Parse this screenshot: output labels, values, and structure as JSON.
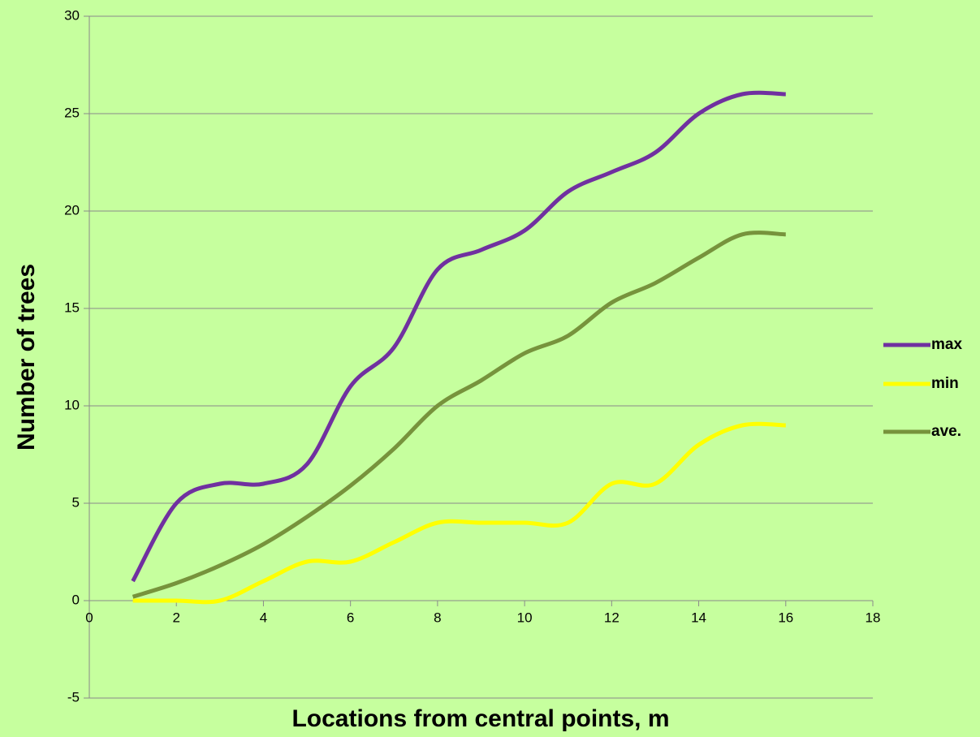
{
  "chart_data": {
    "type": "line",
    "x_label": "Locations from central points, m",
    "y_label": "Number of trees",
    "x": [
      1,
      2,
      3,
      4,
      5,
      6,
      7,
      8,
      9,
      10,
      11,
      12,
      13,
      14,
      15,
      16
    ],
    "series": [
      {
        "name": "max",
        "color": "#7030a0",
        "values": [
          1,
          5,
          6,
          6,
          7,
          11,
          13,
          17,
          18,
          19,
          21,
          22,
          23,
          25,
          26,
          26
        ]
      },
      {
        "name": "min",
        "color": "#ffff00",
        "values": [
          0,
          0,
          0,
          1,
          2,
          2,
          3,
          4,
          4,
          4,
          4,
          6,
          6,
          8,
          9,
          9
        ]
      },
      {
        "name": "ave.",
        "color": "#77933c",
        "values": [
          0.2,
          0.9,
          1.8,
          2.9,
          4.3,
          5.9,
          7.8,
          10,
          11.3,
          12.7,
          13.6,
          15.3,
          16.3,
          17.6,
          18.8,
          18.8
        ]
      }
    ],
    "xlim": [
      0,
      18
    ],
    "xticks": [
      0,
      2,
      4,
      6,
      8,
      10,
      12,
      14,
      16,
      18
    ],
    "ylim": [
      -5,
      30
    ],
    "yticks": [
      -5,
      0,
      5,
      10,
      15,
      20,
      25,
      30
    ],
    "grid": true,
    "smooth": true,
    "legend": "right"
  }
}
